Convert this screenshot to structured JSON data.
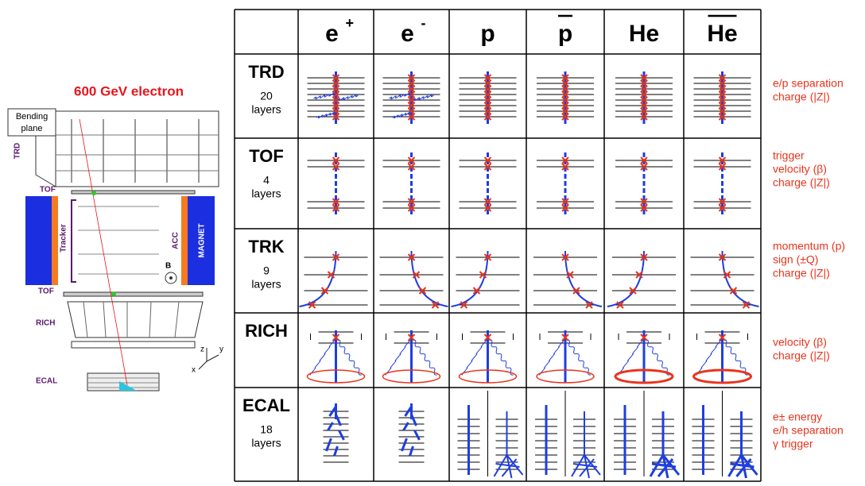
{
  "detector": {
    "title": "600 GeV electron",
    "bending_plane": [
      "Bending",
      "plane"
    ],
    "labels": {
      "trd": "TRD",
      "tof_top": "TOF",
      "tracker": "Tracker",
      "acc": "ACC",
      "magnet": "MAGNET",
      "b_field": "B",
      "tof_bottom": "TOF",
      "rich": "RICH",
      "ecal": "ECAL"
    },
    "axes": {
      "z": "z",
      "y": "y",
      "x": "x"
    }
  },
  "table": {
    "columns": [
      {
        "text": "e",
        "sup": "+"
      },
      {
        "text": "e",
        "sup": "-"
      },
      {
        "text": "p"
      },
      {
        "text": "p",
        "overline": true
      },
      {
        "text": "He"
      },
      {
        "text": "He",
        "overline": true
      }
    ],
    "rows": [
      {
        "name": "TRD",
        "layers": [
          "20",
          "layers"
        ],
        "notes": [
          "e/p separation",
          "charge (|Z|)"
        ]
      },
      {
        "name": "TOF",
        "layers": [
          "4",
          "layers"
        ],
        "notes": [
          "trigger",
          "velocity (β)",
          "charge (|Z|)"
        ]
      },
      {
        "name": "TRK",
        "layers": [
          "9",
          "layers"
        ],
        "notes": [
          "momentum (p)",
          "sign (±Q)",
          "charge (|Z|)"
        ]
      },
      {
        "name": "RICH",
        "notes": [
          "velocity (β)",
          "charge (|Z|)"
        ]
      },
      {
        "name": "ECAL",
        "layers": [
          "18",
          "layers"
        ],
        "notes": [
          "e± energy",
          "e/h separation",
          "γ trigger"
        ]
      }
    ]
  }
}
